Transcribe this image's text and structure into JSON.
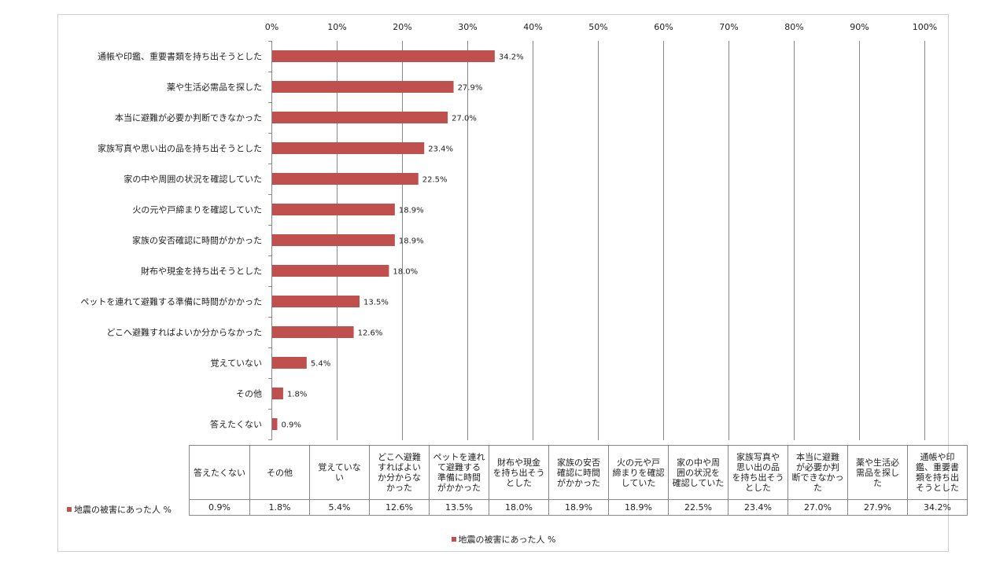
{
  "chart_data": {
    "type": "bar",
    "orientation": "horizontal",
    "categories": [
      "通帳や印鑑、重要書類を持ち出そうとした",
      "薬や生活必需品を探した",
      "本当に避難が必要か判断できなかった",
      "家族写真や思い出の品を持ち出そうとした",
      "家の中や周囲の状況を確認していた",
      "火の元や戸締まりを確認していた",
      "家族の安否確認に時間がかかった",
      "財布や現金を持ち出そうとした",
      "ペットを連れて避難する準備に時間がかかった",
      "どこへ避難すればよいか分からなかった",
      "覚えていない",
      "その他",
      "答えたくない"
    ],
    "series": [
      {
        "name": "地震の被害にあった人 %",
        "values": [
          34.2,
          27.9,
          27.0,
          23.4,
          22.5,
          18.9,
          18.9,
          18.0,
          13.5,
          12.6,
          5.4,
          1.8,
          0.9
        ],
        "data_labels": [
          "34.2%",
          "27.9%",
          "27.0%",
          "23.4%",
          "22.5%",
          "18.9%",
          "18.9%",
          "18.0%",
          "13.5%",
          "12.6%",
          "5.4%",
          "1.8%",
          "0.9%"
        ]
      }
    ],
    "xlim": [
      0,
      100
    ],
    "x_ticks": [
      "0%",
      "10%",
      "20%",
      "30%",
      "40%",
      "50%",
      "60%",
      "70%",
      "80%",
      "90%",
      "100%"
    ],
    "axis_position": "top",
    "grid": true,
    "bar_color": "#c0504d",
    "legend": {
      "position": "bottom",
      "label": "地震の被害にあった人 %"
    },
    "data_table": {
      "row_label": "地震の被害にあった人 %",
      "headers": [
        [
          "答えたくない"
        ],
        [
          "その他"
        ],
        [
          "覚えていな",
          "い"
        ],
        [
          "どこへ避難",
          "すればよい",
          "か分からな",
          "かった"
        ],
        [
          "ペットを連れ",
          "て避難する",
          "準備に時間",
          "がかかった"
        ],
        [
          "財布や現金",
          "を持ち出そう",
          "とした"
        ],
        [
          "家族の安否",
          "確認に時間",
          "がかかった"
        ],
        [
          "火の元や戸",
          "締まりを確認",
          "していた"
        ],
        [
          "家の中や周",
          "囲の状況を",
          "確認していた"
        ],
        [
          "家族写真や",
          "思い出の品",
          "を持ち出そう",
          "とした"
        ],
        [
          "本当に避難",
          "が必要か判",
          "断できなかっ",
          "た"
        ],
        [
          "薬や生活必",
          "需品を探し",
          "た"
        ],
        [
          "通帳や印",
          "鑑、重要書",
          "類を持ち出",
          "そうとした"
        ]
      ],
      "values": [
        "0.9%",
        "1.8%",
        "5.4%",
        "12.6%",
        "13.5%",
        "18.0%",
        "18.9%",
        "18.9%",
        "22.5%",
        "23.4%",
        "27.0%",
        "27.9%",
        "34.2%"
      ]
    }
  }
}
